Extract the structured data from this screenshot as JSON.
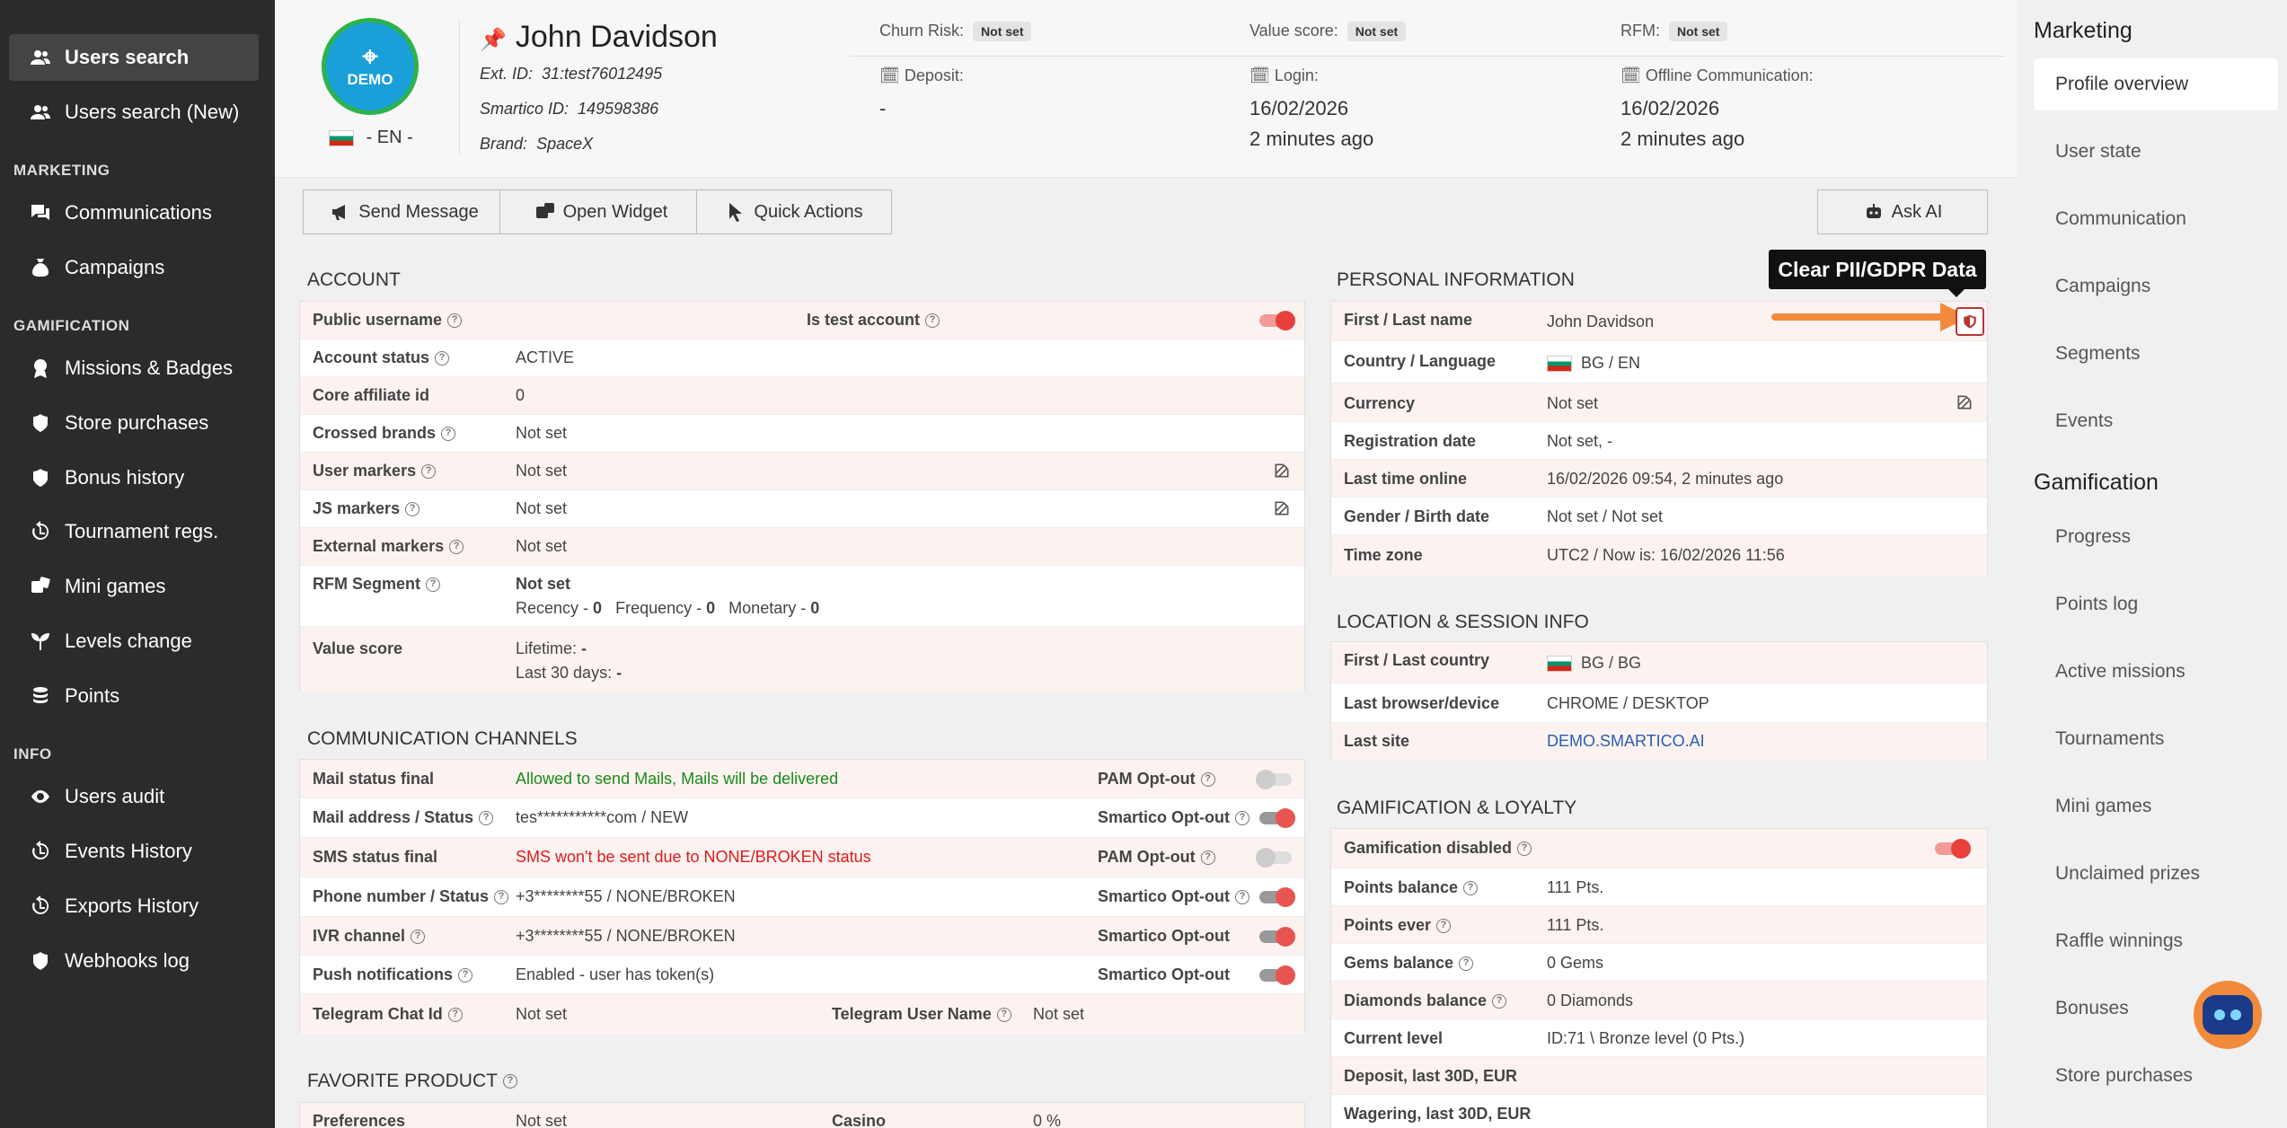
{
  "sidebar": {
    "items_top": [
      {
        "label": "Users search",
        "icon": "users-icon"
      },
      {
        "label": "Users search (New)",
        "icon": "users-icon"
      }
    ],
    "marketing_title": "MARKETING",
    "marketing_items": [
      {
        "label": "Communications",
        "icon": "chat-icon"
      },
      {
        "label": "Campaigns",
        "icon": "money-bag-icon"
      }
    ],
    "gamification_title": "GAMIFICATION",
    "gamification_items": [
      {
        "label": "Missions & Badges",
        "icon": "medal-icon"
      },
      {
        "label": "Store purchases",
        "icon": "badge-icon"
      },
      {
        "label": "Bonus history",
        "icon": "badge-icon"
      },
      {
        "label": "Tournament regs.",
        "icon": "history-icon"
      },
      {
        "label": "Mini games",
        "icon": "dice-icon"
      },
      {
        "label": "Levels change",
        "icon": "seedling-icon"
      },
      {
        "label": "Points",
        "icon": "coins-icon"
      }
    ],
    "info_title": "INFO",
    "info_items": [
      {
        "label": "Users audit",
        "icon": "eye-icon"
      },
      {
        "label": "Events History",
        "icon": "history-icon"
      },
      {
        "label": "Exports History",
        "icon": "history-icon"
      },
      {
        "label": "Webhooks log",
        "icon": "badge-icon"
      }
    ]
  },
  "header": {
    "logo_text": "DEMO",
    "lang": "- EN -",
    "name": "John Davidson",
    "ext_id_label": "Ext. ID:",
    "ext_id": "31:test76012495",
    "smartico_id_label": "Smartico ID:",
    "smartico_id": "149598386",
    "brand_label": "Brand:",
    "brand": "SpaceX",
    "churn_label": "Churn Risk:",
    "churn_value": "Not set",
    "value_score_label": "Value score:",
    "value_score_value": "Not set",
    "rfm_label": "RFM:",
    "rfm_value": "Not set",
    "deposit_label": "Deposit:",
    "deposit_value": "-",
    "login_label": "Login:",
    "login_date": "16/02/2026",
    "login_ago": "2 minutes ago",
    "offline_label": "Offline Communication:",
    "offline_date": "16/02/2026",
    "offline_ago": "2 minutes ago"
  },
  "toolbar": {
    "send_message": "Send Message",
    "open_widget": "Open Widget",
    "quick_actions": "Quick Actions",
    "ask_ai": "Ask AI"
  },
  "account": {
    "title": "ACCOUNT",
    "public_username": "Public username",
    "is_test_account": "Is test account",
    "account_status_label": "Account status",
    "account_status": "ACTIVE",
    "core_affiliate_label": "Core affiliate id",
    "core_affiliate": "0",
    "crossed_brands_label": "Crossed brands",
    "crossed_brands": "Not set",
    "user_markers_label": "User markers",
    "user_markers": "Not set",
    "js_markers_label": "JS markers",
    "js_markers": "Not set",
    "external_markers_label": "External markers",
    "external_markers": "Not set",
    "rfm_segment_label": "RFM Segment",
    "rfm_segment": "Not set",
    "recency_label": "Recency -",
    "recency": "0",
    "frequency_label": "Frequency -",
    "frequency": "0",
    "monetary_label": "Monetary -",
    "monetary": "0",
    "value_score_label": "Value score",
    "lifetime_label": "Lifetime:",
    "lifetime": "-",
    "last30_label": "Last 30 days:",
    "last30": "-"
  },
  "comm": {
    "title": "COMMUNICATION CHANNELS",
    "rows": [
      {
        "label": "Mail status final",
        "value": "Allowed to send Mails, Mails will be delivered",
        "opt": "PAM Opt-out"
      },
      {
        "label": "Mail address / Status",
        "value": "tes***********com / NEW",
        "opt": "Smartico Opt-out"
      },
      {
        "label": "SMS status final",
        "value": "SMS won't be sent due to NONE/BROKEN status",
        "opt": "PAM Opt-out"
      },
      {
        "label": "Phone number / Status",
        "value": "+3********55 / NONE/BROKEN",
        "opt": "Smartico Opt-out"
      },
      {
        "label": "IVR channel",
        "value": "+3********55 / NONE/BROKEN",
        "opt": "Smartico Opt-out"
      },
      {
        "label": "Push notifications",
        "value": "Enabled - user has token(s)",
        "opt": "Smartico Opt-out"
      }
    ],
    "telegram_chat_label": "Telegram Chat Id",
    "telegram_chat": "Not set",
    "telegram_user_label": "Telegram User Name",
    "telegram_user": "Not set"
  },
  "favorite": {
    "title": "FAVORITE PRODUCT",
    "pref_label": "Preferences",
    "pref": "Not set",
    "casino_label": "Casino",
    "casino": "0 %"
  },
  "personal": {
    "title": "PERSONAL INFORMATION",
    "name_label": "First / Last name",
    "name": "John Davidson",
    "country_label": "Country / Language",
    "country": "BG / EN",
    "currency_label": "Currency",
    "currency": "Not set",
    "reg_label": "Registration date",
    "reg": "Not set, -",
    "online_label": "Last time online",
    "online": "16/02/2026 09:54, 2 minutes ago",
    "gender_label": "Gender / Birth date",
    "gender": "Not set / Not set",
    "tz_label": "Time zone",
    "tz": "UTC2 /  Now is: 16/02/2026 11:56"
  },
  "tooltip": "Clear PII/GDPR Data",
  "location": {
    "title": "LOCATION & SESSION INFO",
    "country_label": "First / Last country",
    "country": "BG / BG",
    "browser_label": "Last browser/device",
    "browser": "CHROME  /  DESKTOP",
    "site_label": "Last site",
    "site": "DEMO.SMARTICO.AI"
  },
  "gamif": {
    "title": "GAMIFICATION & LOYALTY",
    "disabled_label": "Gamification disabled",
    "points_label": "Points balance",
    "points": "111 Pts.",
    "ever_label": "Points ever",
    "ever": "111 Pts.",
    "gems_label": "Gems balance",
    "gems": "0 Gems",
    "diamonds_label": "Diamonds balance",
    "diamonds": "0 Diamonds",
    "level_label": "Current level",
    "level": "ID:71 \\ Bronze level (0 Pts.)",
    "deposit_label": "Deposit, last 30D, EUR",
    "wagering_label": "Wagering, last 30D, EUR"
  },
  "rightpanel": {
    "marketing_title": "Marketing",
    "marketing_items": [
      "Profile overview",
      "User state",
      "Communication",
      "Campaigns",
      "Segments",
      "Events"
    ],
    "gamification_title": "Gamification",
    "gamification_items": [
      "Progress",
      "Points log",
      "Active missions",
      "Tournaments",
      "Mini games",
      "Unclaimed prizes",
      "Raffle winnings",
      "Bonuses",
      "Store purchases"
    ]
  }
}
